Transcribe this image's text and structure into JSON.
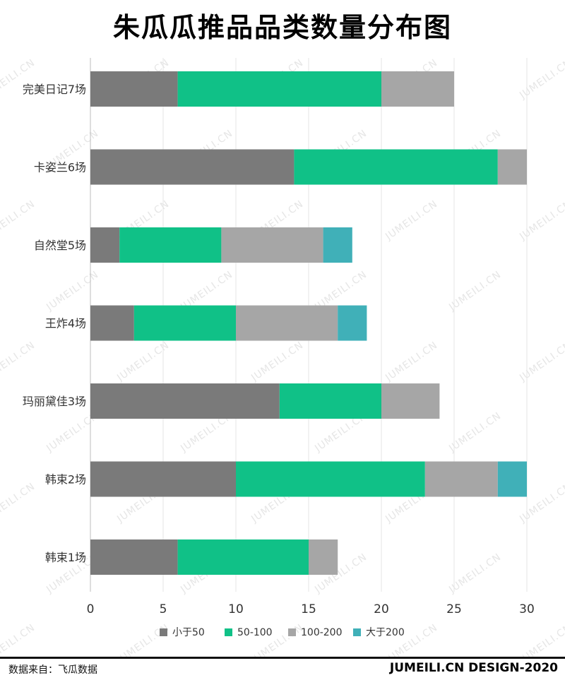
{
  "chart_data": {
    "type": "bar",
    "orientation": "horizontal",
    "stacked": true,
    "title": "朱瓜瓜推品品类数量分布图",
    "categories": [
      "完美日记7场",
      "卡姿兰6场",
      "自然堂5场",
      "王炸4场",
      "玛丽黛佳3场",
      "韩束2场",
      "韩束1场"
    ],
    "series": [
      {
        "name": "小于50",
        "color": "#7a7a7a",
        "values": [
          6,
          14,
          2,
          3,
          13,
          10,
          6
        ]
      },
      {
        "name": "50-100",
        "color": "#10c187",
        "values": [
          14,
          14,
          7,
          7,
          7,
          13,
          9
        ]
      },
      {
        "name": "100-200",
        "color": "#a6a6a6",
        "values": [
          5,
          2,
          7,
          7,
          4,
          5,
          2
        ]
      },
      {
        "name": "大于200",
        "color": "#40b0b8",
        "values": [
          0,
          0,
          2,
          2,
          0,
          2,
          0
        ]
      }
    ],
    "xlim": [
      0,
      30
    ],
    "xticks": [
      0,
      5,
      10,
      15,
      20,
      25,
      30
    ],
    "grid": true,
    "legend_position": "bottom"
  },
  "footer": {
    "source": "数据来自：飞瓜数据",
    "brand": "JUMEILI.CN DESIGN-2020"
  },
  "watermark": "JUMEILI.CN"
}
